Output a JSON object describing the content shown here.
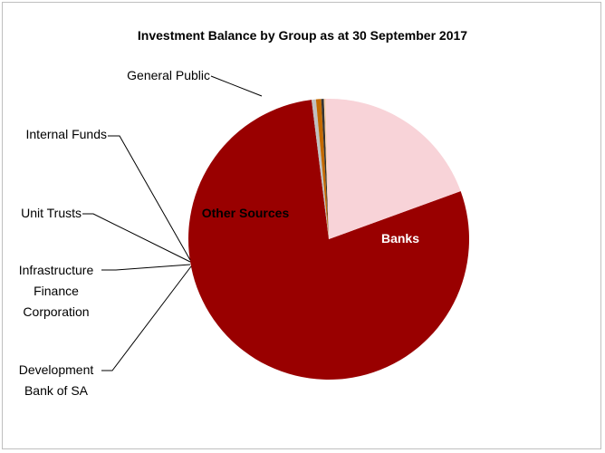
{
  "chart_data": {
    "type": "pie",
    "title": "Investment Balance by Group as at 30  September 2017",
    "slices": [
      {
        "label": "Banks",
        "value": 78.6,
        "color": "#990000",
        "label_color": "#ffffff",
        "label_style": "inside"
      },
      {
        "label": "Development Bank of SA",
        "value": 0.5,
        "color": "#c0c0c0",
        "label_style": "callout"
      },
      {
        "label": "Infrastructure Finance Corporation",
        "value": 0.6,
        "color": "#c46a00",
        "label_style": "callout"
      },
      {
        "label": "Unit Trusts",
        "value": 0.3,
        "color": "#333333",
        "label_style": "callout"
      },
      {
        "label": "Internal Funds",
        "value": 0.2,
        "color": "#f3c9a8",
        "label_style": "callout"
      },
      {
        "label": "Other Sources",
        "value": 19.8,
        "color": "#f8d3d8",
        "label_color": "#000000",
        "label_style": "inside"
      }
    ],
    "extra_callouts": [
      {
        "label": "General Public"
      }
    ]
  }
}
